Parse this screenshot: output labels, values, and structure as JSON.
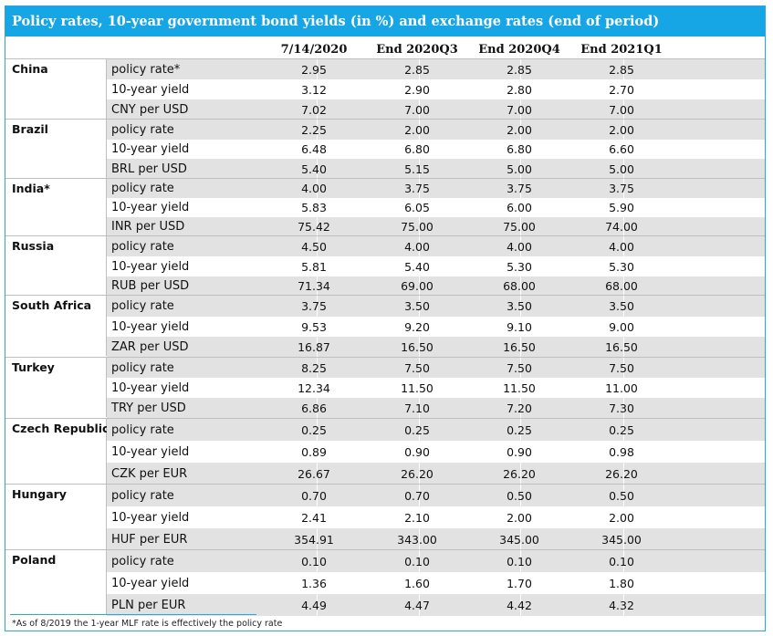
{
  "title": "Policy rates, 10-year government bond yields (in %) and exchange rates (end of period)",
  "columns": [
    "7/14/2020",
    "End 2020Q3",
    "End 2020Q4",
    "End 2021Q1"
  ],
  "countries": [
    {
      "name": "China",
      "rows": [
        {
          "label": "policy rate*",
          "values": [
            "2.95",
            "2.85",
            "2.85",
            "2.85"
          ]
        },
        {
          "label": "10-year yield",
          "values": [
            "3.12",
            "2.90",
            "2.80",
            "2.70"
          ]
        },
        {
          "label": "CNY per USD",
          "values": [
            "7.02",
            "7.00",
            "7.00",
            "7.00"
          ]
        }
      ]
    },
    {
      "name": "Brazil",
      "rows": [
        {
          "label": "policy rate",
          "values": [
            "2.25",
            "2.00",
            "2.00",
            "2.00"
          ]
        },
        {
          "label": "10-year yield",
          "values": [
            "6.48",
            "6.80",
            "6.80",
            "6.60"
          ]
        },
        {
          "label": "BRL per USD",
          "values": [
            "5.40",
            "5.15",
            "5.00",
            "5.00"
          ]
        }
      ]
    },
    {
      "name": "India*",
      "rows": [
        {
          "label": "policy rate",
          "values": [
            "4.00",
            "3.75",
            "3.75",
            "3.75"
          ]
        },
        {
          "label": "10-year yield",
          "values": [
            "5.83",
            "6.05",
            "6.00",
            "5.90"
          ]
        },
        {
          "label": "INR per USD",
          "values": [
            "75.42",
            "75.00",
            "75.00",
            "74.00"
          ]
        }
      ]
    },
    {
      "name": "Russia",
      "rows": [
        {
          "label": "policy rate",
          "values": [
            "4.50",
            "4.00",
            "4.00",
            "4.00"
          ]
        },
        {
          "label": "10-year yield",
          "values": [
            "5.81",
            "5.40",
            "5.30",
            "5.30"
          ]
        },
        {
          "label": "RUB per USD",
          "values": [
            "71.34",
            "69.00",
            "68.00",
            "68.00"
          ]
        }
      ]
    },
    {
      "name": "South Africa",
      "rows": [
        {
          "label": "policy rate",
          "values": [
            "3.75",
            "3.50",
            "3.50",
            "3.50"
          ]
        },
        {
          "label": "10-year yield",
          "values": [
            "9.53",
            "9.20",
            "9.10",
            "9.00"
          ]
        },
        {
          "label": "ZAR per USD",
          "values": [
            "16.87",
            "16.50",
            "16.50",
            "16.50"
          ]
        }
      ]
    },
    {
      "name": "Turkey",
      "rows": [
        {
          "label": "policy rate",
          "values": [
            "8.25",
            "7.50",
            "7.50",
            "7.50"
          ]
        },
        {
          "label": "10-year yield",
          "values": [
            "12.34",
            "11.50",
            "11.50",
            "11.00"
          ]
        },
        {
          "label": "TRY per USD",
          "values": [
            "6.86",
            "7.10",
            "7.20",
            "7.30"
          ]
        }
      ]
    },
    {
      "name": "Czech Republic",
      "rows": [
        {
          "label": "policy rate",
          "values": [
            "0.25",
            "0.25",
            "0.25",
            "0.25"
          ]
        },
        {
          "label": "10-year yield",
          "values": [
            "0.89",
            "0.90",
            "0.90",
            "0.98"
          ]
        },
        {
          "label": "CZK per EUR",
          "values": [
            "26.67",
            "26.20",
            "26.20",
            "26.20"
          ]
        }
      ]
    },
    {
      "name": "Hungary",
      "rows": [
        {
          "label": "policy rate",
          "values": [
            "0.70",
            "0.70",
            "0.50",
            "0.50"
          ]
        },
        {
          "label": "10-year yield",
          "values": [
            "2.41",
            "2.10",
            "2.00",
            "2.00"
          ]
        },
        {
          "label": "HUF per EUR",
          "values": [
            "354.91",
            "343.00",
            "345.00",
            "345.00"
          ]
        }
      ]
    },
    {
      "name": "Poland",
      "rows": [
        {
          "label": "policy rate",
          "values": [
            "0.10",
            "0.10",
            "0.10",
            "0.10"
          ]
        },
        {
          "label": "10-year yield",
          "values": [
            "1.36",
            "1.60",
            "1.70",
            "1.80"
          ]
        },
        {
          "label": "PLN per EUR",
          "values": [
            "4.49",
            "4.47",
            "4.42",
            "4.32"
          ]
        }
      ]
    }
  ],
  "footnote": "*As of 8/2019 the 1-year MLF rate is effectively the policy rate",
  "colors": {
    "title_bg": "#16a6e6",
    "row_shade": "#e2e2e2",
    "rule": "#bfbfbf"
  }
}
